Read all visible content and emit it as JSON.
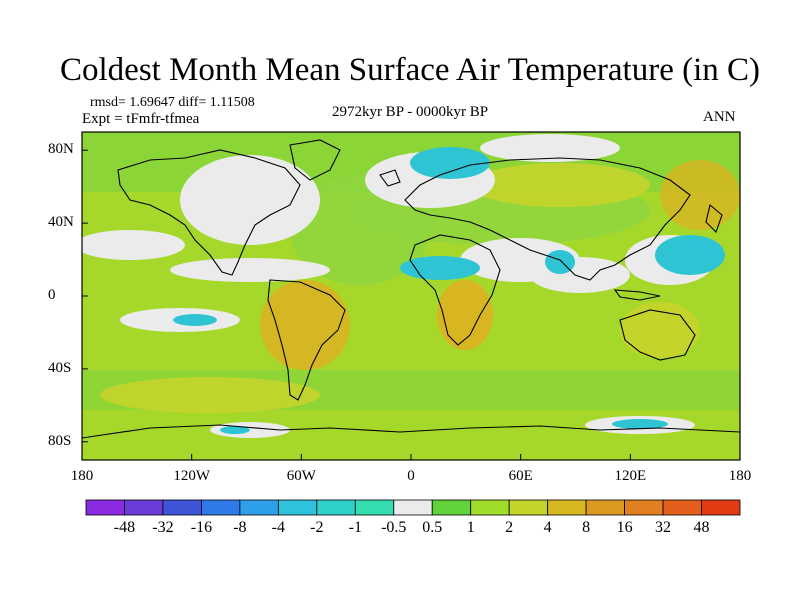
{
  "title": "Coldest Month Mean Surface Air Temperature (in C)",
  "stats": "rmsd= 1.69647  diff= 1.11508",
  "experiment": "Expt = tFmfr-tfmea",
  "period": "2972kyr BP - 0000kyr BP",
  "season": "ANN",
  "map": {
    "projection": "cylindrical-equidistant",
    "lon_range": [
      -180,
      180
    ],
    "lat_range": [
      -90,
      90
    ],
    "lat_ticks": [
      {
        "value": 80,
        "label": "80N"
      },
      {
        "value": 40,
        "label": "40N"
      },
      {
        "value": 0,
        "label": "0"
      },
      {
        "value": -40,
        "label": "40S"
      },
      {
        "value": -80,
        "label": "80S"
      }
    ],
    "lon_ticks": [
      {
        "value": -180,
        "label": "180"
      },
      {
        "value": -120,
        "label": "120W"
      },
      {
        "value": -60,
        "label": "60W"
      },
      {
        "value": 0,
        "label": "0"
      },
      {
        "value": 60,
        "label": "60E"
      },
      {
        "value": 120,
        "label": "120E"
      },
      {
        "value": 180,
        "label": "180"
      }
    ]
  },
  "colorbar": {
    "colors": [
      "#8a2be2",
      "#6a3cd8",
      "#3f55d8",
      "#2f79e8",
      "#2ea0ea",
      "#2ec2dc",
      "#2fd2c8",
      "#34dcb0",
      "#ebebeb",
      "#62d23a",
      "#a0dc2a",
      "#c4d42a",
      "#d8b820",
      "#dc9a20",
      "#e07e20",
      "#e45e1c",
      "#e23a12"
    ],
    "labels": [
      "-48",
      "-32",
      "-16",
      "-8",
      "-4",
      "-2",
      "-1",
      "-0.5",
      "0.5",
      "1",
      "2",
      "4",
      "8",
      "16",
      "32",
      "48"
    ]
  }
}
